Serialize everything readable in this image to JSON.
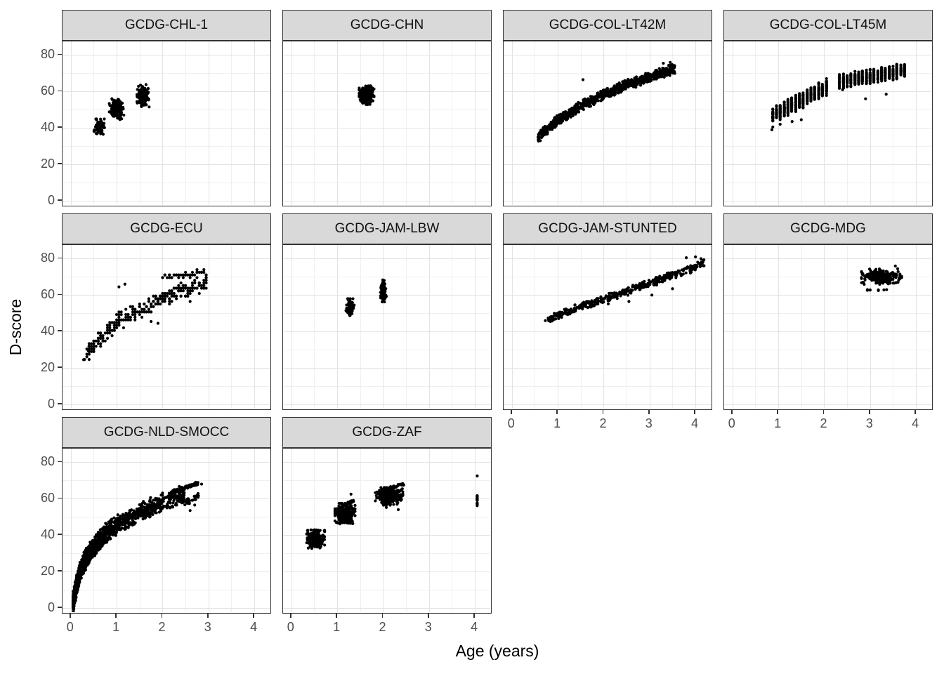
{
  "chart_data": {
    "type": "scatter",
    "xlabel": "Age (years)",
    "ylabel": "D-score",
    "x_ticks": [
      0,
      1,
      2,
      3,
      4
    ],
    "y_ticks": [
      0,
      20,
      40,
      60,
      80
    ],
    "x_minor": [
      0.5,
      1.5,
      2.5,
      3.5
    ],
    "y_minor": [
      10,
      30,
      50,
      70
    ],
    "xlim": [
      -0.18,
      4.38
    ],
    "ylim": [
      -3.5,
      87.5
    ],
    "grid": true,
    "legend": "none",
    "point_color": "#000000",
    "strip_fill": "#d9d9d9",
    "panel_border_color": "#333333",
    "grid_major_color": "#e3e3e3",
    "grid_minor_color": "#f0f0f0",
    "axis_text_color": "#4d4d4d",
    "panels": [
      {
        "title": "GCDG-CHL-1",
        "row": 0,
        "col": 0,
        "groups": [
          {
            "kind": "blob",
            "cx": 0.62,
            "cy": 40.3,
            "rx": 0.05,
            "ry": 2.0,
            "n": 70
          },
          {
            "kind": "blob",
            "cx": 1.0,
            "cy": 50.5,
            "rx": 0.07,
            "ry": 2.4,
            "n": 150
          },
          {
            "kind": "blob",
            "cx": 1.58,
            "cy": 57.5,
            "rx": 0.06,
            "ry": 2.6,
            "n": 150
          },
          {
            "kind": "pts",
            "xy": [
              [
                1.07,
                44.6
              ],
              [
                0.57,
                36.8
              ],
              [
                1.52,
                63.5
              ],
              [
                1.64,
                63.8
              ],
              [
                0.67,
                43.5
              ]
            ]
          }
        ]
      },
      {
        "title": "GCDG-CHN",
        "row": 0,
        "col": 1,
        "groups": [
          {
            "kind": "blob",
            "cx": 1.64,
            "cy": 58,
            "rx": 0.07,
            "ry": 2.2,
            "n": 300
          },
          {
            "kind": "pts",
            "xy": [
              [
                1.8,
                57.5
              ],
              [
                1.5,
                55.5
              ],
              [
                1.62,
                63
              ],
              [
                1.66,
                52.8
              ]
            ]
          }
        ]
      },
      {
        "title": "GCDG-COL-LT42M",
        "row": 0,
        "col": 2,
        "groups": [
          {
            "kind": "band",
            "x": [
              0.57,
              1.0,
              1.5,
              2.0,
              2.5,
              3.0,
              3.55
            ],
            "y": [
              35,
              44,
              52,
              58.5,
              63.5,
              68,
              72.5
            ],
            "yspread": 3.2,
            "n": 950
          },
          {
            "kind": "pts",
            "xy": [
              [
                1.55,
                66.5
              ],
              [
                0.62,
                33
              ],
              [
                3.45,
                76
              ],
              [
                3.3,
                75.5
              ]
            ]
          }
        ]
      },
      {
        "title": "GCDG-COL-LT45M",
        "row": 0,
        "col": 3,
        "groups": [
          {
            "kind": "cols",
            "ages": [
              0.88,
              0.96,
              1.04,
              1.13,
              1.21,
              1.29,
              1.38,
              1.46,
              1.54,
              1.63,
              1.71,
              1.79,
              1.88,
              1.96,
              2.05
            ],
            "ya": 0.88,
            "yb": 2.05,
            "y0": 47,
            "y1": 62.5,
            "yspread": 5,
            "n": 500
          },
          {
            "kind": "cols",
            "ages": [
              2.33,
              2.42,
              2.5,
              2.58,
              2.67,
              2.75,
              2.83,
              2.92,
              3.0,
              3.08,
              3.17,
              3.25,
              3.33,
              3.42,
              3.5,
              3.58,
              3.67,
              3.75
            ],
            "ya": 2.33,
            "yb": 3.75,
            "y0": 65.5,
            "y1": 71.5,
            "yspread": 4.5,
            "n": 540
          },
          {
            "kind": "pts",
            "xy": [
              [
                0.88,
                40.5
              ],
              [
                1.04,
                42
              ],
              [
                1.3,
                43.5
              ],
              [
                1.5,
                44.5
              ],
              [
                2.9,
                56
              ],
              [
                3.35,
                58.5
              ],
              [
                2.4,
                61
              ],
              [
                0.86,
                39
              ]
            ]
          }
        ]
      },
      {
        "title": "GCDG-ECU",
        "row": 1,
        "col": 0,
        "groups": [
          {
            "kind": "band",
            "x": [
              0.3,
              0.55,
              0.85,
              1.15,
              1.45,
              1.75,
              2.05,
              2.35,
              2.65,
              2.95
            ],
            "y": [
              26,
              34,
              41.5,
              46.5,
              51,
              55,
              58.5,
              62,
              64.5,
              66.5
            ],
            "yspread": 5.5,
            "n": 300,
            "round_x": 0.05,
            "round_y": 1.45
          },
          {
            "kind": "band",
            "x": [
              2.0,
              2.95
            ],
            "y": [
              70,
              72.8
            ],
            "yspread": 2.2,
            "n": 40,
            "round_x": 0.05,
            "round_y": 1.45
          },
          {
            "kind": "pts",
            "xy": [
              [
                0.28,
                24.5
              ],
              [
                0.38,
                29.5
              ],
              [
                1.05,
                64.5
              ],
              [
                1.18,
                66
              ],
              [
                2.6,
                56.5
              ],
              [
                1.9,
                44.5
              ],
              [
                1.75,
                45.5
              ]
            ]
          }
        ]
      },
      {
        "title": "GCDG-JAM-LBW",
        "row": 1,
        "col": 1,
        "groups": [
          {
            "kind": "blob",
            "cx": 1.28,
            "cy": 53.4,
            "rx": 0.033,
            "ry": 2.0,
            "n": 95
          },
          {
            "kind": "blob",
            "cx": 2.0,
            "cy": 62.5,
            "rx": 0.028,
            "ry": 2.7,
            "n": 95
          },
          {
            "kind": "pts",
            "xy": [
              [
                1.19,
                51.5
              ],
              [
                1.37,
                54.5
              ],
              [
                2.07,
                59.3
              ],
              [
                2.0,
                67.5
              ]
            ]
          }
        ]
      },
      {
        "title": "GCDG-JAM-STUNTED",
        "row": 1,
        "col": 2,
        "groups": [
          {
            "kind": "band",
            "x": [
              0.77,
              1.5,
              2.25,
              3.0,
              3.6,
              4.2
            ],
            "y": [
              47,
              53.5,
              60,
              66.5,
              72,
              77.5
            ],
            "yspread": 2.7,
            "n": 400
          },
          {
            "kind": "pts",
            "xy": [
              [
                0.73,
                46
              ],
              [
                2.1,
                55.2
              ],
              [
                2.55,
                56.5
              ],
              [
                3.5,
                63.5
              ],
              [
                3.05,
                60
              ],
              [
                3.8,
                80.5
              ],
              [
                4.0,
                81
              ],
              [
                4.12,
                80
              ]
            ]
          }
        ]
      },
      {
        "title": "GCDG-MDG",
        "row": 1,
        "col": 3,
        "groups": [
          {
            "kind": "blob",
            "cx": 3.25,
            "cy": 70,
            "rx": 0.19,
            "ry": 1.9,
            "n": 250
          },
          {
            "kind": "band",
            "x": [
              2.92,
              3.4
            ],
            "y": [
              62.8,
              62.8
            ],
            "yspread": 0.5,
            "n": 9,
            "round_x": 0.06
          },
          {
            "kind": "pts",
            "xy": [
              [
                3.55,
                76
              ],
              [
                2.84,
                67
              ],
              [
                3.65,
                71.5
              ],
              [
                3.6,
                74.5
              ]
            ]
          }
        ]
      },
      {
        "title": "GCDG-NLD-SMOCC",
        "row": 2,
        "col": 0,
        "groups": [
          {
            "kind": "band",
            "x": [
              0.05,
              0.1,
              0.2,
              0.35,
              0.5,
              0.75,
              1.0,
              1.5,
              2.0,
              2.5
            ],
            "y": [
              3,
              9,
              20,
              28,
              33.5,
              40.5,
              45.5,
              52.5,
              58,
              63
            ],
            "yspread": 6,
            "n": 1700,
            "xdist": "log"
          },
          {
            "kind": "band",
            "x": [
              2.2,
              2.78
            ],
            "y": [
              63.5,
              68.5
            ],
            "yspread": 1.2,
            "n": 70
          },
          {
            "kind": "band",
            "x": [
              2.4,
              2.8
            ],
            "y": [
              57.5,
              61.5
            ],
            "yspread": 2.5,
            "n": 35
          },
          {
            "kind": "pts",
            "xy": [
              [
                0.06,
                1.2
              ],
              [
                2.85,
                68
              ],
              [
                2.6,
                53.5
              ],
              [
                2.7,
                56.5
              ]
            ]
          }
        ]
      },
      {
        "title": "GCDG-ZAF",
        "row": 2,
        "col": 1,
        "groups": [
          {
            "kind": "blob",
            "cx": 0.53,
            "cy": 37.8,
            "rx": 0.085,
            "ry": 2.2,
            "n": 260
          },
          {
            "kind": "blob",
            "cx": 1.17,
            "cy": 51.7,
            "rx": 0.095,
            "ry": 2.5,
            "n": 290
          },
          {
            "kind": "band",
            "x": [
              1.22,
              1.36
            ],
            "y": [
              57.6,
              58.8
            ],
            "yspread": 0.7,
            "n": 22
          },
          {
            "kind": "blob",
            "cx": 2.13,
            "cy": 61.3,
            "rx": 0.13,
            "ry": 2.1,
            "n": 340
          },
          {
            "kind": "band",
            "x": [
              1.97,
              2.45
            ],
            "y": [
              64.8,
              67.8
            ],
            "yspread": 0.9,
            "n": 55
          },
          {
            "kind": "cols",
            "ages": [
              4.05
            ],
            "ya": 4.0,
            "yb": 4.1,
            "y0": 59.5,
            "y1": 59.5,
            "yspread": 4.3,
            "n": 24
          },
          {
            "kind": "pts",
            "xy": [
              [
                4.05,
                72.5
              ],
              [
                2.07,
                55.2
              ],
              [
                2.33,
                54
              ],
              [
                1.06,
                46.2
              ],
              [
                1.24,
                47.6
              ],
              [
                0.46,
                34
              ],
              [
                1.3,
                62.5
              ]
            ]
          }
        ]
      }
    ]
  }
}
